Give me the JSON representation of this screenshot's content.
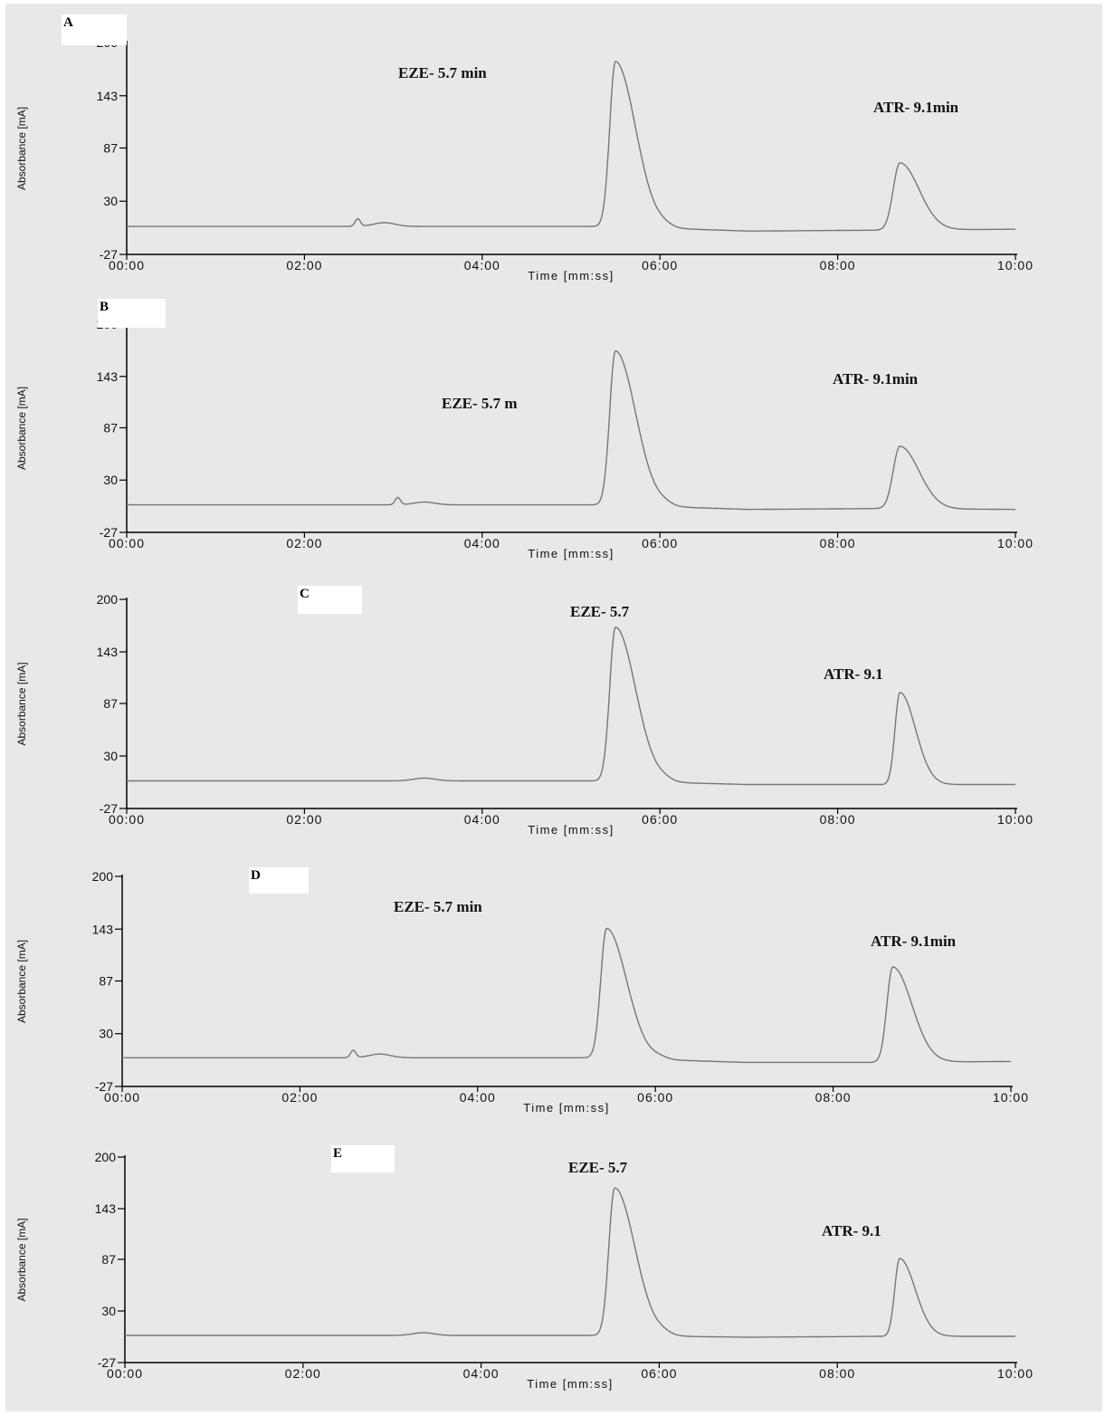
{
  "chart_data": [
    {
      "panel": "A",
      "type": "line",
      "xlabel": "Time [mm:ss]",
      "ylabel": "Absorbance [mA]",
      "xlim": [
        0,
        10
      ],
      "ylim": [
        -27,
        200
      ],
      "xticks": [
        "00:00",
        "02:00",
        "04:00",
        "06:00",
        "08:00",
        "10:00"
      ],
      "yticks": [
        "200",
        "143",
        "87",
        "30",
        "-27"
      ],
      "baseline": 3,
      "drift": [
        [
          0,
          3
        ],
        [
          5.4,
          3
        ],
        [
          7.0,
          -2
        ],
        [
          8.5,
          -1
        ],
        [
          10,
          0
        ]
      ],
      "minor_peaks": [
        {
          "x": 2.6,
          "y": 8,
          "w": 0.03
        },
        {
          "x": 2.9,
          "y": 4,
          "w": 0.12
        },
        {
          "x": 6.05,
          "y": 2,
          "w": 0.08
        }
      ],
      "peaks": [
        {
          "name": "EZE",
          "x": 5.5,
          "y": 177,
          "w": 0.065,
          "tail": 0.16
        },
        {
          "name": "ATR",
          "x": 8.7,
          "y": 72,
          "w": 0.075,
          "tail": 0.14
        }
      ],
      "annotations": [
        "EZE- 5.7 min",
        "ATR- 9.1min"
      ]
    },
    {
      "panel": "B",
      "type": "line",
      "xlabel": "Time [mm:ss]",
      "ylabel": "Absorbance [mA]",
      "xlim": [
        0,
        10
      ],
      "ylim": [
        -27,
        200
      ],
      "xticks": [
        "00:00",
        "02:00",
        "04:00",
        "06:00",
        "08:00",
        "10:00"
      ],
      "yticks": [
        "200",
        "143",
        "87",
        "30",
        "-27"
      ],
      "baseline": 3,
      "drift": [
        [
          0,
          3
        ],
        [
          5.4,
          3
        ],
        [
          7.0,
          -2
        ],
        [
          8.5,
          -1
        ],
        [
          10,
          -2
        ]
      ],
      "minor_peaks": [
        {
          "x": 3.05,
          "y": 8,
          "w": 0.03
        },
        {
          "x": 3.35,
          "y": 3,
          "w": 0.12
        },
        {
          "x": 6.05,
          "y": 2,
          "w": 0.08
        }
      ],
      "peaks": [
        {
          "name": "EZE",
          "x": 5.5,
          "y": 168,
          "w": 0.065,
          "tail": 0.16
        },
        {
          "name": "ATR",
          "x": 8.7,
          "y": 68,
          "w": 0.075,
          "tail": 0.14
        }
      ],
      "annotations": [
        "EZE- 5.7 m",
        "ATR- 9.1min"
      ]
    },
    {
      "panel": "C",
      "type": "line",
      "xlabel": "Time [mm:ss]",
      "ylabel": "Absorbance [mA]",
      "xlim": [
        0,
        10
      ],
      "ylim": [
        -27,
        200
      ],
      "xticks": [
        "00:00",
        "02:00",
        "04:00",
        "06:00",
        "08:00",
        "10:00"
      ],
      "yticks": [
        "200",
        "143",
        "87",
        "30",
        "-27"
      ],
      "baseline": 3,
      "drift": [
        [
          0,
          3
        ],
        [
          5.4,
          3
        ],
        [
          7.0,
          -1
        ],
        [
          8.5,
          -1
        ],
        [
          10,
          -1
        ]
      ],
      "minor_peaks": [
        {
          "x": 3.35,
          "y": 3,
          "w": 0.12
        },
        {
          "x": 6.05,
          "y": 2,
          "w": 0.08
        }
      ],
      "peaks": [
        {
          "name": "EZE",
          "x": 5.5,
          "y": 167,
          "w": 0.065,
          "tail": 0.16
        },
        {
          "name": "ATR",
          "x": 8.7,
          "y": 100,
          "w": 0.055,
          "tail": 0.12
        }
      ],
      "annotations": [
        "EZE- 5.7",
        "ATR- 9.1"
      ]
    },
    {
      "panel": "D",
      "type": "line",
      "xlabel": "Time [mm:ss]",
      "ylabel": "Absorbance [mA]",
      "xlim": [
        0,
        10
      ],
      "ylim": [
        -27,
        200
      ],
      "xticks": [
        "00:00",
        "02:00",
        "04:00",
        "06:00",
        "08:00",
        "10:00"
      ],
      "yticks": [
        "200",
        "143",
        "87",
        "30",
        "-27"
      ],
      "baseline": 4,
      "drift": [
        [
          0,
          4
        ],
        [
          5.4,
          4
        ],
        [
          7.0,
          -1
        ],
        [
          8.5,
          -1
        ],
        [
          10,
          0
        ]
      ],
      "minor_peaks": [
        {
          "x": 2.6,
          "y": 8,
          "w": 0.03
        },
        {
          "x": 2.9,
          "y": 4,
          "w": 0.12
        },
        {
          "x": 6.05,
          "y": 2,
          "w": 0.08
        }
      ],
      "peaks": [
        {
          "name": "EZE",
          "x": 5.45,
          "y": 140,
          "w": 0.065,
          "tail": 0.16
        },
        {
          "name": "ATR",
          "x": 8.67,
          "y": 103,
          "w": 0.065,
          "tail": 0.15
        }
      ],
      "annotations": [
        "EZE- 5.7 min",
        "ATR- 9.1min"
      ]
    },
    {
      "panel": "E",
      "type": "line",
      "xlabel": "Time [mm:ss]",
      "ylabel": "Absorbance [mA]",
      "xlim": [
        0,
        10
      ],
      "ylim": [
        -27,
        200
      ],
      "xticks": [
        "00:00",
        "02:00",
        "04:00",
        "06:00",
        "08:00",
        "10:00"
      ],
      "yticks": [
        "200",
        "143",
        "87",
        "30",
        "-27"
      ],
      "baseline": 3,
      "drift": [
        [
          0,
          3
        ],
        [
          5.4,
          3
        ],
        [
          7.0,
          1
        ],
        [
          8.5,
          2
        ],
        [
          10,
          2
        ]
      ],
      "minor_peaks": [
        {
          "x": 3.35,
          "y": 3,
          "w": 0.12
        },
        {
          "x": 6.05,
          "y": 2,
          "w": 0.08
        }
      ],
      "peaks": [
        {
          "name": "EZE",
          "x": 5.5,
          "y": 163,
          "w": 0.065,
          "tail": 0.16
        },
        {
          "name": "ATR",
          "x": 8.7,
          "y": 86,
          "w": 0.055,
          "tail": 0.12
        }
      ],
      "annotations": [
        "EZE- 5.7",
        "ATR- 9.1"
      ]
    }
  ]
}
